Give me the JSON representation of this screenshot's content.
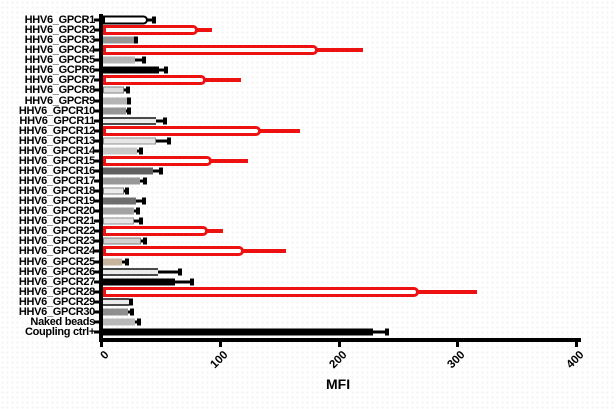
{
  "chart_data": {
    "type": "bar",
    "orientation": "horizontal",
    "title": "",
    "xlabel": "MFI",
    "xlim": [
      0,
      400
    ],
    "x_ticks": [
      0,
      100,
      200,
      300,
      400
    ],
    "grid": false,
    "legend": false,
    "colors": {
      "red_accent": "#ee1111",
      "black": "#000000",
      "striped_edge": "#4a4a4a",
      "striped_center": "#ebebeb",
      "tan": "#c6b59c"
    },
    "bars": [
      {
        "label": "HHV6_GPCR1",
        "value": 38,
        "error": 44,
        "kind": "outline",
        "fill": "#ffffff",
        "checker": false
      },
      {
        "label": "HHV6_GPCR2",
        "value": 80,
        "error": 92,
        "kind": "red",
        "fill": "#ffffff",
        "checker": false
      },
      {
        "label": "HHV6_GPCR3",
        "value": 26,
        "error": 29,
        "kind": "solid",
        "fill": "#969696",
        "checker": true
      },
      {
        "label": "HHV6_GPCR4",
        "value": 181,
        "error": 219,
        "kind": "red",
        "fill": "#ffffff",
        "checker": false
      },
      {
        "label": "HHV6_GPCR5",
        "value": 27,
        "error": 35,
        "kind": "solid",
        "fill": "#b4b4b4",
        "checker": true
      },
      {
        "label": "HHV6_GCPR6",
        "value": 47,
        "error": 54,
        "kind": "solid",
        "fill": "#000000",
        "checker": false
      },
      {
        "label": "HHV6_GPCR7",
        "value": 87,
        "error": 116,
        "kind": "red",
        "fill": "#ffffff",
        "checker": false
      },
      {
        "label": "HHV6_GPCR8",
        "value": 18,
        "error": 22,
        "kind": "solid",
        "fill": "#dcdcdc",
        "stroke": "#808080",
        "checker": false
      },
      {
        "label": "HHV6_GPCR9",
        "value": 20,
        "error": 23,
        "kind": "solid",
        "fill": "#b4b4b4",
        "checker": true
      },
      {
        "label": "HHV6_GPCR10",
        "value": 19,
        "error": 23,
        "kind": "solid",
        "fill": "#969696",
        "checker": true
      },
      {
        "label": "HHV6_GPCR11",
        "value": 45,
        "error": 53,
        "kind": "striped",
        "fill": "#ebebeb",
        "checker": false
      },
      {
        "label": "HHV6_GPCR12",
        "value": 133,
        "error": 166,
        "kind": "red",
        "fill": "#ffffff",
        "checker": false
      },
      {
        "label": "HHV6_GPCR13",
        "value": 45,
        "error": 56,
        "kind": "solid",
        "fill": "#e6e6e6",
        "stroke": "#909090",
        "checker": true
      },
      {
        "label": "HHV6_GPCR14",
        "value": 29,
        "error": 33,
        "kind": "solid",
        "fill": "#c8c8c8",
        "checker": true
      },
      {
        "label": "HHV6_GPCR15",
        "value": 92,
        "error": 122,
        "kind": "red",
        "fill": "#ffffff",
        "checker": false
      },
      {
        "label": "HHV6_GPCR16",
        "value": 42,
        "error": 50,
        "kind": "solid",
        "fill": "#606060",
        "checker": false
      },
      {
        "label": "HHV6_GPCR17",
        "value": 31,
        "error": 36,
        "kind": "solid",
        "fill": "#989898",
        "checker": true
      },
      {
        "label": "HHV6_GPCR18",
        "value": 18,
        "error": 21,
        "kind": "solid",
        "fill": "#ececec",
        "stroke": "#808080",
        "checker": false
      },
      {
        "label": "HHV6_GPCR19",
        "value": 28,
        "error": 35,
        "kind": "solid",
        "fill": "#6e6e6e",
        "checker": false
      },
      {
        "label": "HHV6_GPCR20",
        "value": 26,
        "error": 30,
        "kind": "solid",
        "fill": "#a2a2a2",
        "checker": true
      },
      {
        "label": "HHV6_GPCR21",
        "value": 26,
        "error": 33,
        "kind": "solid",
        "fill": "#e6e6e6",
        "stroke": "#909090",
        "checker": false
      },
      {
        "label": "HHV6_GPCR22",
        "value": 88,
        "error": 101,
        "kind": "red",
        "fill": "#ffffff",
        "checker": false
      },
      {
        "label": "HHV6_GPCR23",
        "value": 32,
        "error": 36,
        "kind": "solid",
        "fill": "#d2d2d2",
        "stroke": "#808080",
        "checker": false
      },
      {
        "label": "HHV6_GPCR24",
        "value": 119,
        "error": 154,
        "kind": "red",
        "fill": "#ffffff",
        "checker": false
      },
      {
        "label": "HHV6_GPCR25",
        "value": 16,
        "error": 21,
        "kind": "solid",
        "fill": "#c6b59c",
        "checker": true
      },
      {
        "label": "HHV6_GPCR26",
        "value": 46,
        "error": 66,
        "kind": "striped",
        "fill": "#ebebeb",
        "checker": false
      },
      {
        "label": "HHV6_GPCR27",
        "value": 61,
        "error": 76,
        "kind": "solid",
        "fill": "#000000",
        "checker": false
      },
      {
        "label": "HHV6_GPCR28",
        "value": 266,
        "error": 315,
        "kind": "red",
        "fill": "#ffffff",
        "checker": false
      },
      {
        "label": "HHV6_GPCR29",
        "value": 22,
        "error": 24,
        "kind": "striped",
        "fill": "#ebebeb",
        "checker": false
      },
      {
        "label": "HHV6_GPCR30",
        "value": 21,
        "error": 25,
        "kind": "solid",
        "fill": "#8e8e8e",
        "checker": true
      },
      {
        "label": "Naked beads",
        "value": 27,
        "error": 31,
        "kind": "solid",
        "fill": "#b8b8b8",
        "checker": true
      },
      {
        "label": "Coupling ctrl+",
        "value": 227,
        "error": 240,
        "kind": "solid",
        "fill": "#000000",
        "checker": false
      }
    ]
  }
}
